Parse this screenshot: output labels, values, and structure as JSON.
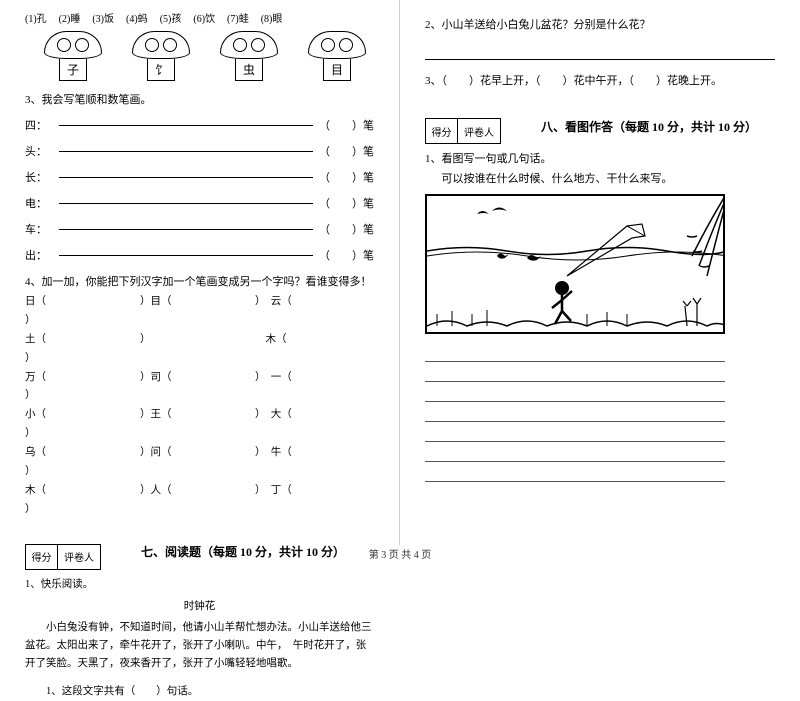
{
  "left": {
    "top_labels": [
      "(1)孔",
      "(2)睡",
      "(3)饭",
      "(4)蚂",
      "(5)孩",
      "(6)饮",
      "(7)蛙",
      "(8)眼"
    ],
    "mushroom_stems": [
      "子",
      "饣",
      "虫",
      "目"
    ],
    "q3_title": "3、我会写笔顺和数笔画。",
    "stroke_rows": [
      {
        "char": "四：",
        "tail": "（　　）笔"
      },
      {
        "char": "头：",
        "tail": "（　　）笔"
      },
      {
        "char": "长：",
        "tail": "（　　）笔"
      },
      {
        "char": "电：",
        "tail": "（　　）笔"
      },
      {
        "char": "车：",
        "tail": "（　　）笔"
      },
      {
        "char": "出：",
        "tail": "（　　）笔"
      }
    ],
    "q4_title": "4、加一加，你能把下列汉字加一个笔画变成另一个字吗？看谁变得多！",
    "add_rows": [
      [
        "日（",
        "）目（",
        "）　云（",
        "）"
      ],
      [
        "土（",
        "）　　",
        "　木（",
        "）"
      ],
      [
        "万（",
        "）司（",
        "）　一（",
        "）"
      ],
      [
        "小（",
        "）王（",
        "）　大（",
        "）"
      ],
      [
        "乌（",
        "）问（",
        "）　牛（",
        "）"
      ],
      [
        "木（",
        "）人（",
        "）　丁（",
        "）"
      ]
    ],
    "score_labels": [
      "得分",
      "评卷人"
    ],
    "section7_title": "七、阅读题（每题 10 分，共计 10 分）",
    "reading_q": "1、快乐阅读。",
    "reading_title": "时钟花",
    "reading_body": "小白兔没有钟，不知道时间，他请小山羊帮忙想办法。小山羊送给他三盆花。太阳出来了，牵牛花开了，张开了小喇叭。中午，　午时花开了，张开了笑脸。天黑了，夜来香开了，张开了小嘴轻轻地唱歌。",
    "reading_sub": "1、这段文字共有（　　）句话。"
  },
  "right": {
    "q2": "2、小山羊送给小白兔儿盆花？分别是什么花？",
    "q3": "3、（　　）花早上开，（　　）花中午开，（　　）花晚上开。",
    "score_labels": [
      "得分",
      "评卷人"
    ],
    "section8_title": "八、看图作答（每题 10 分，共计 10 分）",
    "writing_q": "1、看图写一句或几句话。",
    "writing_hint": "可以按谁在什么时候、什么地方、干什么来写。"
  },
  "footer": "第 3 页 共 4 页"
}
